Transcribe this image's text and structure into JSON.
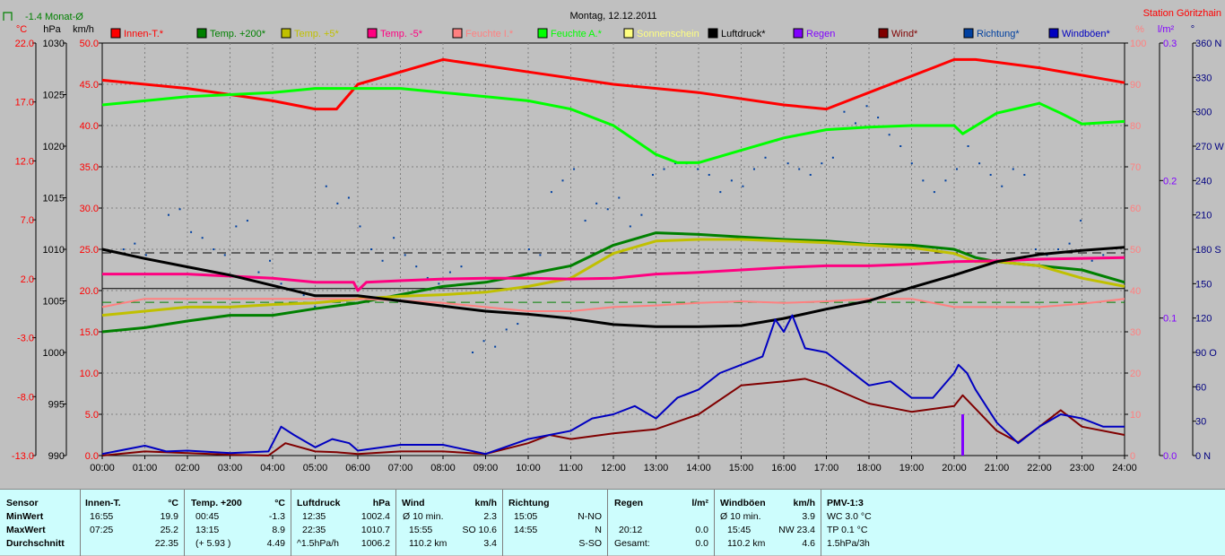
{
  "title": "Montag, 12.12.2011",
  "station": "Station Göritzhain",
  "indicator_label": "-1.4 Monat-Ø",
  "axis_units": {
    "temp": "°C",
    "pressure": "hPa",
    "speed": "km/h",
    "humidity": "%",
    "rain": "l/m²",
    "direction": "°"
  },
  "legend": [
    {
      "label": "Innen-T.*",
      "color": "#ff0000"
    },
    {
      "label": "Temp. +200*",
      "color": "#008000"
    },
    {
      "label": "Temp. +5*",
      "color": "#c0c000"
    },
    {
      "label": "Temp. -5*",
      "color": "#ff0080"
    },
    {
      "label": "Feuchte I.*",
      "color": "#ff8080"
    },
    {
      "label": "Feuchte A.*",
      "color": "#00ff00"
    },
    {
      "label": "Sonnenschein",
      "color": "#ffff80"
    },
    {
      "label": "Luftdruck*",
      "color": "#000000"
    },
    {
      "label": "Regen",
      "color": "#8000ff"
    },
    {
      "label": "Wind*",
      "color": "#800000"
    },
    {
      "label": "Richtung*",
      "color": "#0040a0"
    },
    {
      "label": "Windböen*",
      "color": "#0000c0"
    }
  ],
  "chart_data": {
    "type": "line",
    "title": "Montag, 12.12.2011",
    "x_ticks": [
      "00:00",
      "01:00",
      "02:00",
      "03:00",
      "04:00",
      "05:00",
      "06:00",
      "07:00",
      "08:00",
      "09:00",
      "10:00",
      "11:00",
      "12:00",
      "13:00",
      "14:00",
      "15:00",
      "16:00",
      "17:00",
      "18:00",
      "19:00",
      "20:00",
      "21:00",
      "22:00",
      "23:00",
      "24:00"
    ],
    "axes": {
      "temp": {
        "ticks": [
          "22.0",
          "17.0",
          "12.0",
          "7.0",
          "2.0",
          "-3.0",
          "-8.0",
          "-13.0"
        ],
        "range": [
          -13,
          22
        ]
      },
      "pressure": {
        "ticks": [
          "1030",
          "1025",
          "1020",
          "1015",
          "1010",
          "1005",
          "1000",
          "995",
          "990"
        ],
        "range": [
          990,
          1030
        ]
      },
      "speed": {
        "ticks": [
          "50.0",
          "45.0",
          "40.0",
          "35.0",
          "30.0",
          "25.0",
          "20.0",
          "15.0",
          "10.0",
          "5.0",
          "0.0"
        ],
        "range": [
          0,
          50
        ]
      },
      "humidity": {
        "ticks": [
          "100",
          "90",
          "80",
          "70",
          "60",
          "50",
          "40",
          "30",
          "20",
          "10",
          "0"
        ],
        "range": [
          0,
          100
        ]
      },
      "rain": {
        "ticks": [
          "0.3",
          "0.2",
          "0.1",
          "0.0"
        ],
        "range": [
          0,
          0.3
        ]
      },
      "direction": {
        "ticks": [
          "360 N",
          "330",
          "300",
          "270 W",
          "240",
          "210",
          "180 S",
          "150",
          "120",
          "90 O",
          "60",
          "30",
          "0 N"
        ],
        "range": [
          0,
          360
        ]
      }
    },
    "series": [
      {
        "name": "Innen-T.*",
        "axis": "speed",
        "x": [
          0,
          2,
          4,
          5,
          5.5,
          6,
          8,
          10,
          12,
          14,
          16,
          17,
          18,
          19.5,
          20,
          20.5,
          22,
          24
        ],
        "y": [
          45.5,
          44.5,
          43,
          42,
          42,
          45,
          48,
          46.5,
          45,
          44,
          42.5,
          42,
          44,
          47,
          48,
          48,
          47,
          45.2
        ]
      },
      {
        "name": "Feuchte A.*",
        "axis": "speed",
        "x": [
          0,
          1,
          2,
          4,
          5,
          6,
          7,
          8,
          9,
          10,
          11,
          12,
          13,
          13.5,
          14,
          15,
          16,
          17,
          18,
          19,
          20,
          20.2,
          21,
          22,
          22.5,
          23,
          24
        ],
        "y": [
          42.5,
          43,
          43.5,
          44,
          44.5,
          44.5,
          44.5,
          44,
          43.5,
          43,
          42,
          40,
          36.5,
          35.5,
          35.5,
          37,
          38.5,
          39.5,
          39.8,
          40,
          40,
          39,
          41.5,
          42.7,
          41.5,
          40.2,
          40.5
        ]
      },
      {
        "name": "Temp. +200*",
        "axis": "speed",
        "x": [
          0,
          1,
          2,
          3,
          4,
          5,
          6,
          7,
          8,
          9,
          10,
          11,
          12,
          13,
          14,
          15,
          16,
          17,
          18,
          19,
          20,
          20.5,
          21,
          22,
          23,
          24
        ],
        "y": [
          15,
          15.5,
          16.3,
          17,
          17,
          17.8,
          18.5,
          19.5,
          20.5,
          21,
          22,
          23,
          25.5,
          27,
          26.8,
          26.5,
          26.2,
          26,
          25.6,
          25.5,
          25,
          24,
          23.5,
          23,
          22.5,
          21
        ]
      },
      {
        "name": "Temp. +5*",
        "axis": "speed",
        "x": [
          0,
          1,
          2,
          3,
          4,
          5,
          6,
          7,
          8,
          9,
          10,
          11,
          12,
          13,
          14,
          15,
          16,
          17,
          18,
          19,
          20,
          20.5,
          21,
          22,
          23,
          24
        ],
        "y": [
          17,
          17.5,
          18,
          18,
          18.3,
          18.5,
          19,
          19.3,
          19.5,
          19.8,
          20.5,
          21.5,
          24.5,
          26,
          26.2,
          26.2,
          26,
          25.8,
          25.5,
          25.2,
          24.5,
          23.5,
          23.5,
          23,
          21.5,
          20.5
        ]
      },
      {
        "name": "Temp. -5*",
        "axis": "speed",
        "x": [
          0,
          2,
          4,
          5,
          5.9,
          6,
          6.2,
          7,
          8,
          9,
          10,
          11,
          12,
          13,
          14,
          15,
          16,
          17,
          18,
          19,
          20,
          21,
          22,
          23,
          24
        ],
        "y": [
          22,
          22,
          21.5,
          21,
          21,
          20,
          21,
          21.2,
          21.4,
          21.5,
          21.5,
          21.4,
          21.5,
          22,
          22.2,
          22.5,
          22.8,
          23,
          23,
          23.2,
          23.5,
          23.6,
          23.8,
          23.9,
          24
        ]
      },
      {
        "name": "Feuchte I.*",
        "axis": "speed",
        "x": [
          0,
          1,
          2,
          4,
          6,
          7,
          8,
          9,
          10,
          11,
          12,
          13,
          14,
          15,
          16,
          17,
          18,
          19,
          20,
          21,
          22,
          23,
          24
        ],
        "y": [
          18,
          19,
          19,
          19,
          19,
          18.8,
          18.5,
          18,
          17.5,
          17.5,
          18,
          18.2,
          18.5,
          18.7,
          18.5,
          18.7,
          19,
          19,
          18,
          18,
          18,
          18.4,
          19
        ]
      },
      {
        "name": "Luftdruck*",
        "axis": "pressure",
        "x": [
          0,
          1,
          2,
          3,
          4,
          5,
          6,
          7,
          8,
          9,
          10,
          11,
          12,
          13,
          14,
          15,
          16,
          17,
          18,
          19,
          20,
          21,
          22,
          23,
          24
        ],
        "y": [
          1010,
          1009.1,
          1008.3,
          1007.5,
          1006.5,
          1005.5,
          1005.5,
          1005,
          1004.5,
          1004,
          1003.7,
          1003.3,
          1002.7,
          1002.5,
          1002.5,
          1002.6,
          1003.3,
          1004.2,
          1005,
          1006.3,
          1007.5,
          1008.8,
          1009.5,
          1009.9,
          1010.2
        ]
      },
      {
        "name": "Wind*",
        "axis": "speed",
        "x": [
          0,
          1,
          2,
          3,
          3.9,
          4.3,
          5,
          5.5,
          6,
          7,
          8,
          9,
          10,
          10.5,
          11,
          12,
          13,
          14,
          15,
          16,
          16.5,
          17,
          18,
          19,
          20,
          20.2,
          21,
          21.5,
          22,
          22.5,
          23,
          24
        ],
        "y": [
          0,
          0.5,
          0.3,
          0.1,
          0,
          1.5,
          0.5,
          0.4,
          0.2,
          0.5,
          0.5,
          0.2,
          1.5,
          2.5,
          2,
          2.7,
          3.2,
          5,
          8.5,
          9,
          9.3,
          8.5,
          6.3,
          5.3,
          6,
          7.3,
          3,
          1.6,
          3.5,
          5.5,
          3.5,
          2.5
        ]
      },
      {
        "name": "Windböen*",
        "axis": "speed",
        "x": [
          0,
          1,
          1.5,
          2,
          3,
          3.9,
          4.2,
          4.5,
          5,
          5.4,
          5.8,
          6,
          7,
          8,
          9,
          10,
          10.5,
          11,
          11.5,
          12,
          12.5,
          13,
          13.5,
          14,
          14.5,
          15,
          15.5,
          15.8,
          16,
          16.2,
          16.5,
          17,
          17.5,
          18,
          18.5,
          19,
          19.5,
          20,
          20.1,
          20.3,
          20.5,
          21,
          21.5,
          22,
          22.5,
          23,
          23.5,
          24
        ],
        "y": [
          0.2,
          1.2,
          0.5,
          0.6,
          0.3,
          0.5,
          3.5,
          2.5,
          1,
          2,
          1.5,
          0.6,
          1.3,
          1.3,
          0.2,
          2,
          2.5,
          3,
          4.5,
          5,
          6,
          4.5,
          7,
          8,
          10,
          11,
          12,
          16.5,
          15,
          17,
          13,
          12.5,
          10.5,
          8.5,
          9,
          7,
          7,
          10,
          11,
          10,
          8,
          4,
          1.5,
          3.5,
          5,
          4.5,
          3.5,
          3.5
        ]
      }
    ],
    "rain": {
      "x": [
        20.2
      ],
      "y": [
        0.03
      ]
    },
    "direction_points_deg": [
      180,
      185,
      175,
      170,
      210,
      215,
      195,
      190,
      180,
      175,
      200,
      205,
      160,
      170,
      150,
      145,
      140,
      130,
      235,
      220,
      225,
      200,
      180,
      170,
      190,
      175,
      165,
      155,
      150,
      160,
      165,
      90,
      100,
      95,
      110,
      115,
      180,
      175,
      230,
      240,
      250,
      205,
      220,
      215,
      225,
      200,
      210,
      245,
      250,
      255,
      255,
      250,
      245,
      230,
      240,
      235,
      250,
      260,
      275,
      255,
      250,
      245,
      255,
      260,
      300,
      290,
      305,
      295,
      280,
      270,
      255,
      240,
      230,
      240,
      250,
      270,
      255,
      245,
      235,
      250,
      245,
      180,
      175,
      180,
      185,
      205,
      170,
      175
    ]
  },
  "stats": {
    "sensor": {
      "header": "Sensor",
      "rows": [
        "MinWert",
        "MaxWert",
        "Durchschnitt"
      ]
    },
    "innen": {
      "header": "Innen-T.",
      "unit": "°C",
      "rows": [
        [
          "16:55",
          "19.9"
        ],
        [
          "07:25",
          "25.2"
        ],
        [
          "",
          "22.35"
        ]
      ]
    },
    "temp200": {
      "header": "Temp. +200",
      "unit": "°C",
      "rows": [
        [
          "00:45",
          "-1.3"
        ],
        [
          "13:15",
          "8.9"
        ],
        [
          "(+ 5.93 )",
          "4.49"
        ]
      ]
    },
    "luftdruck": {
      "header": "Luftdruck",
      "unit": "hPa",
      "rows": [
        [
          "12:35",
          "1002.4"
        ],
        [
          "22:35",
          "1010.7"
        ],
        [
          "^1.5hPa/h",
          "1006.2"
        ]
      ]
    },
    "wind": {
      "header": "Wind",
      "unit": "km/h",
      "rows": [
        [
          "Ø 10 min.",
          "2.3"
        ],
        [
          "15:55",
          "SO 10.6"
        ],
        [
          "110.2 km",
          "3.4"
        ]
      ]
    },
    "richtung": {
      "header": "Richtung",
      "rows": [
        [
          "15:05",
          "N-NO"
        ],
        [
          "14:55",
          "N"
        ],
        [
          "",
          "S-SO"
        ]
      ]
    },
    "regen": {
      "header": "Regen",
      "unit": "l/m²",
      "rows": [
        [
          "",
          ""
        ],
        [
          "20:12",
          "0.0"
        ],
        [
          "Gesamt:",
          "0.0"
        ]
      ]
    },
    "windboeen": {
      "header": "Windböen",
      "unit": "km/h",
      "rows": [
        [
          "Ø 10 min.",
          "3.9"
        ],
        [
          "15:45",
          "NW 23.4"
        ],
        [
          "110.2 km",
          "4.6"
        ]
      ]
    },
    "pmv": {
      "header": "PMV-1:3",
      "rows": [
        "WC 3.0 °C",
        "TP 0.1 °C",
        "1.5hPa/3h"
      ]
    }
  }
}
